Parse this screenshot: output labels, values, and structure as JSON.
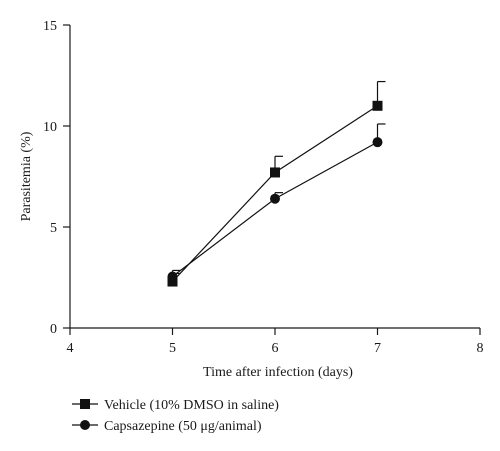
{
  "chart_data": {
    "type": "line",
    "xlabel": "Time after infection (days)",
    "ylabel": "Parasitemia (%)",
    "xlim": [
      4,
      8
    ],
    "ylim": [
      0,
      15
    ],
    "xticks": [
      4,
      5,
      6,
      7,
      8
    ],
    "yticks": [
      0,
      5,
      10,
      15
    ],
    "x": [
      5,
      6,
      7
    ],
    "series": [
      {
        "name": "Vehicle (10% DMSO in saline)",
        "marker": "square",
        "color": "#111111",
        "values": [
          2.3,
          7.7,
          11.0
        ],
        "error": [
          0.4,
          0.8,
          1.2
        ]
      },
      {
        "name": "Capsazepine (50 μg/animal)",
        "marker": "circle",
        "color": "#111111",
        "values": [
          2.55,
          6.4,
          9.2
        ],
        "error": [
          0.3,
          0.3,
          0.9
        ]
      }
    ],
    "grid": false,
    "legend_position": "bottom-left"
  }
}
